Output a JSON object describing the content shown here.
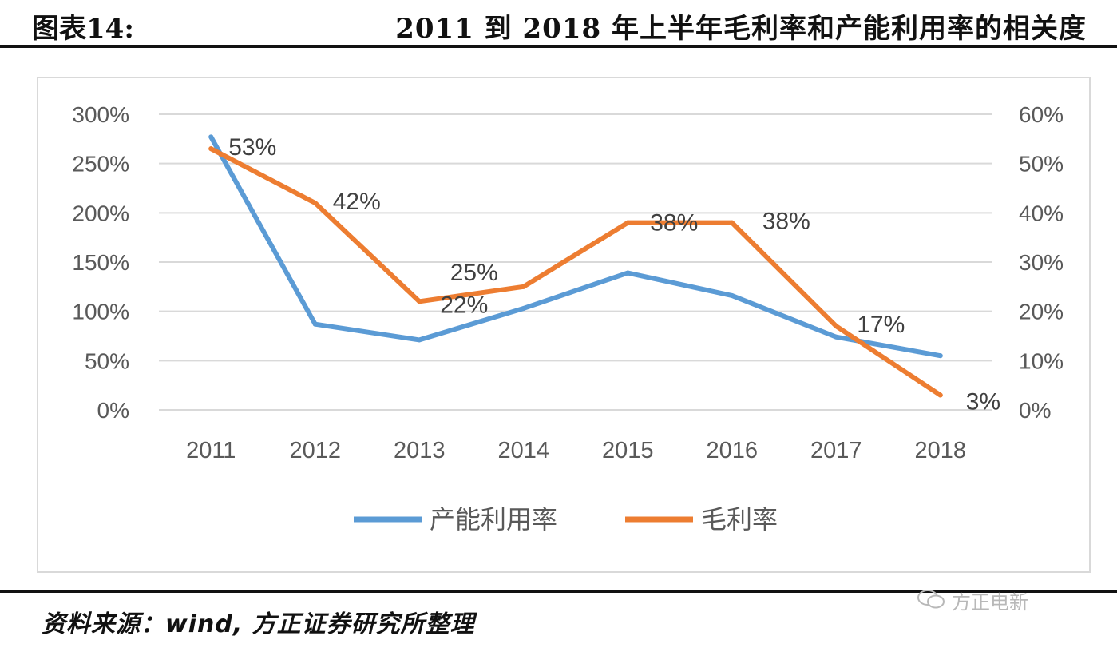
{
  "header": {
    "figure_label": "图表14:",
    "title": "2011 到 2018 年上半年毛利率和产能利用率的相关度"
  },
  "footer": {
    "source": "资料来源：wind, 方正证券研究所整理",
    "watermark": "方正电新"
  },
  "chart_data": {
    "type": "line",
    "categories": [
      "2011",
      "2012",
      "2013",
      "2014",
      "2015",
      "2016",
      "2017",
      "2018"
    ],
    "y_left": {
      "ticks": [
        "0%",
        "50%",
        "100%",
        "150%",
        "200%",
        "250%",
        "300%"
      ],
      "ylim": [
        0,
        300
      ]
    },
    "y_right": {
      "ticks": [
        "0%",
        "10%",
        "20%",
        "30%",
        "40%",
        "50%",
        "60%"
      ],
      "ylim": [
        0,
        60
      ]
    },
    "grid": true,
    "legend_position": "bottom",
    "series": [
      {
        "name": "产能利用率",
        "axis": "left",
        "color": "#5b9bd5",
        "values": [
          277,
          87,
          71,
          103,
          139,
          116,
          74,
          55
        ],
        "labels": []
      },
      {
        "name": "毛利率",
        "axis": "right",
        "color": "#ed7d31",
        "values": [
          53,
          42,
          22,
          25,
          38,
          38,
          17,
          3
        ],
        "labels": [
          "53%",
          "42%",
          "22%",
          "25%",
          "38%",
          "38%",
          "17%",
          "3%"
        ]
      }
    ]
  }
}
